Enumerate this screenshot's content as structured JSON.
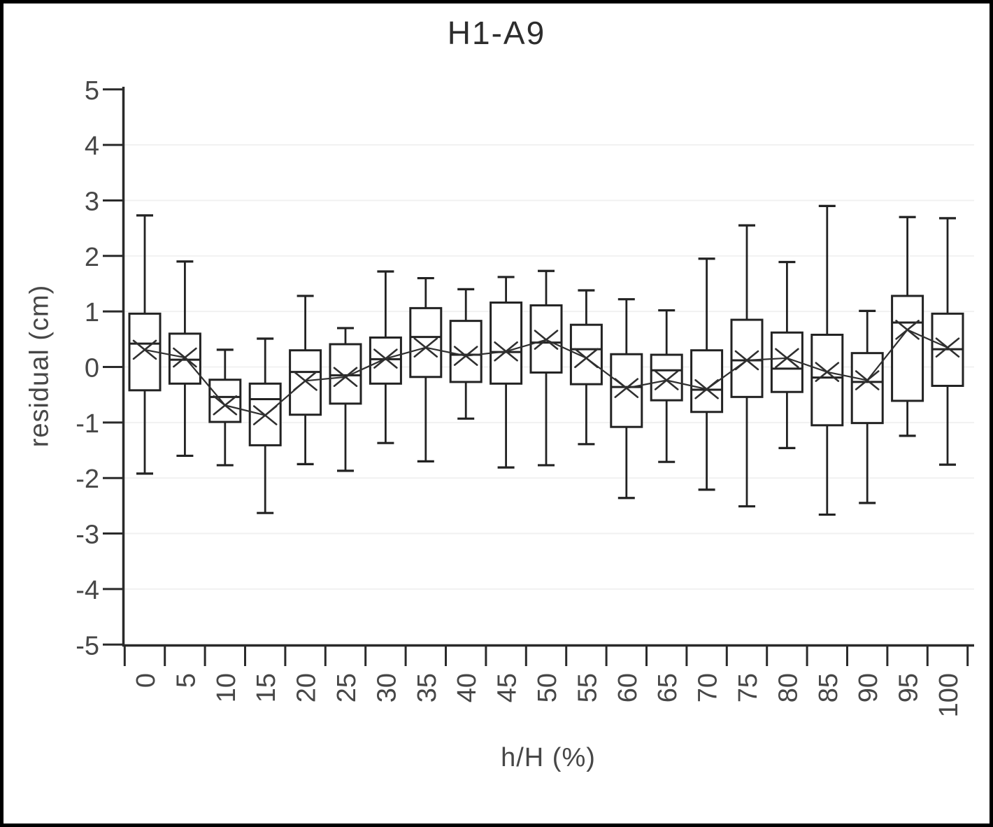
{
  "figure": {
    "title": "H1-A9"
  },
  "colors": {
    "background": "#ffffff",
    "frame": "#000000",
    "box_stroke": "#222222",
    "axis": "#2a2a2a",
    "grid": "#f1f1f1",
    "text": "#474747",
    "mean_line": "#2f2f2f"
  },
  "chart_data": {
    "type": "box",
    "title": "H1-A9",
    "xlabel": "h/H (%)",
    "ylabel": "residual (cm)",
    "ylim": [
      -5,
      5
    ],
    "yticks": [
      5,
      4,
      3,
      2,
      1,
      0,
      -1,
      -2,
      -3,
      -4,
      -5
    ],
    "grid": "faint horizontal gridlines at integer y values",
    "legend": "none",
    "x_tick_style": "ticks at category boundaries, labels rotated 90deg CCW",
    "marker": "x = mean, connected by line; box = Q1-Q3 with median line; whiskers with caps",
    "categories": [
      "0",
      "5",
      "10",
      "15",
      "20",
      "25",
      "30",
      "35",
      "40",
      "45",
      "50",
      "55",
      "60",
      "65",
      "70",
      "75",
      "80",
      "85",
      "90",
      "95",
      "100"
    ],
    "boxes": [
      {
        "category": "0",
        "whisker_low": -1.92,
        "q1": -0.42,
        "median": 0.42,
        "mean": 0.31,
        "q3": 0.96,
        "whisker_high": 2.73
      },
      {
        "category": "5",
        "whisker_low": -1.6,
        "q1": -0.3,
        "median": 0.13,
        "mean": 0.17,
        "q3": 0.6,
        "whisker_high": 1.9
      },
      {
        "category": "10",
        "whisker_low": -1.77,
        "q1": -0.99,
        "median": -0.54,
        "mean": -0.69,
        "q3": -0.23,
        "whisker_high": 0.31
      },
      {
        "category": "15",
        "whisker_low": -2.63,
        "q1": -1.41,
        "median": -0.58,
        "mean": -0.87,
        "q3": -0.3,
        "whisker_high": 0.51
      },
      {
        "category": "20",
        "whisker_low": -1.75,
        "q1": -0.86,
        "median": -0.09,
        "mean": -0.25,
        "q3": 0.3,
        "whisker_high": 1.28
      },
      {
        "category": "25",
        "whisker_low": -1.87,
        "q1": -0.66,
        "median": -0.15,
        "mean": -0.18,
        "q3": 0.41,
        "whisker_high": 0.7
      },
      {
        "category": "30",
        "whisker_low": -1.37,
        "q1": -0.3,
        "median": 0.14,
        "mean": 0.15,
        "q3": 0.53,
        "whisker_high": 1.72
      },
      {
        "category": "35",
        "whisker_low": -1.7,
        "q1": -0.18,
        "median": 0.54,
        "mean": 0.35,
        "q3": 1.06,
        "whisker_high": 1.6
      },
      {
        "category": "40",
        "whisker_low": -0.93,
        "q1": -0.27,
        "median": 0.22,
        "mean": 0.2,
        "q3": 0.83,
        "whisker_high": 1.4
      },
      {
        "category": "45",
        "whisker_low": -1.81,
        "q1": -0.3,
        "median": 0.27,
        "mean": 0.28,
        "q3": 1.16,
        "whisker_high": 1.62
      },
      {
        "category": "50",
        "whisker_low": -1.77,
        "q1": -0.1,
        "median": 0.44,
        "mean": 0.49,
        "q3": 1.11,
        "whisker_high": 1.73
      },
      {
        "category": "55",
        "whisker_low": -1.39,
        "q1": -0.31,
        "median": 0.32,
        "mean": 0.16,
        "q3": 0.76,
        "whisker_high": 1.38
      },
      {
        "category": "60",
        "whisker_low": -2.36,
        "q1": -1.08,
        "median": -0.36,
        "mean": -0.38,
        "q3": 0.23,
        "whisker_high": 1.22
      },
      {
        "category": "65",
        "whisker_low": -1.71,
        "q1": -0.6,
        "median": -0.06,
        "mean": -0.24,
        "q3": 0.22,
        "whisker_high": 1.02
      },
      {
        "category": "70",
        "whisker_low": -2.21,
        "q1": -0.81,
        "median": -0.41,
        "mean": -0.4,
        "q3": 0.3,
        "whisker_high": 1.95
      },
      {
        "category": "75",
        "whisker_low": -2.51,
        "q1": -0.54,
        "median": 0.12,
        "mean": 0.12,
        "q3": 0.85,
        "whisker_high": 2.55
      },
      {
        "category": "80",
        "whisker_low": -1.46,
        "q1": -0.45,
        "median": -0.03,
        "mean": 0.16,
        "q3": 0.62,
        "whisker_high": 1.89
      },
      {
        "category": "85",
        "whisker_low": -2.66,
        "q1": -1.05,
        "median": -0.19,
        "mean": -0.09,
        "q3": 0.58,
        "whisker_high": 2.9
      },
      {
        "category": "90",
        "whisker_low": -2.45,
        "q1": -1.01,
        "median": -0.27,
        "mean": -0.24,
        "q3": 0.25,
        "whisker_high": 1.01
      },
      {
        "category": "95",
        "whisker_low": -1.24,
        "q1": -0.61,
        "median": 0.8,
        "mean": 0.67,
        "q3": 1.28,
        "whisker_high": 2.7
      },
      {
        "category": "100",
        "whisker_low": -1.76,
        "q1": -0.34,
        "median": 0.32,
        "mean": 0.35,
        "q3": 0.96,
        "whisker_high": 2.68
      }
    ]
  }
}
